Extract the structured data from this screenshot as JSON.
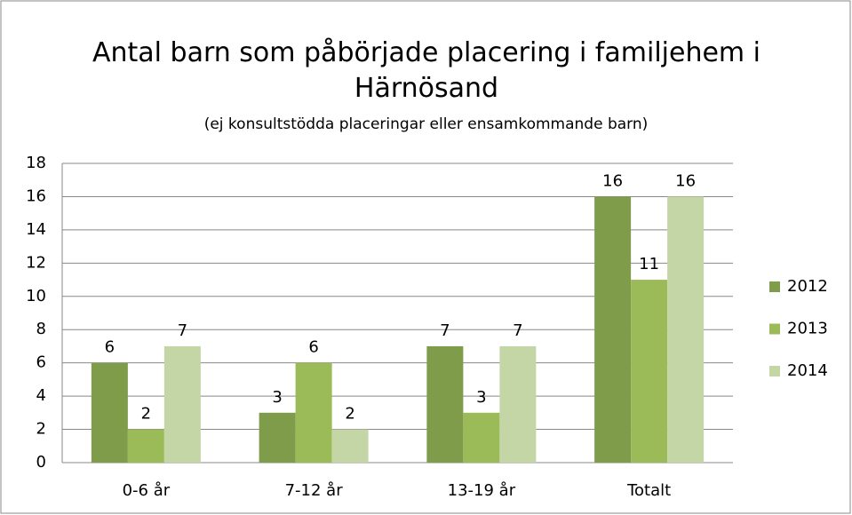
{
  "chart_data": {
    "type": "bar",
    "title": "Antal barn som påbörjade placering i familjehem i Härnösand",
    "subtitle": "(ej konsultstödda placeringar eller ensamkommande barn)",
    "categories": [
      "0-6 år",
      "7-12 år",
      "13-19 år",
      "Totalt"
    ],
    "series": [
      {
        "name": "2012",
        "color": "#7f9c4b",
        "values": [
          6,
          3,
          7,
          16
        ]
      },
      {
        "name": "2013",
        "color": "#9bbb59",
        "values": [
          2,
          6,
          3,
          11
        ]
      },
      {
        "name": "2014",
        "color": "#c4d6a6",
        "values": [
          7,
          2,
          7,
          16
        ]
      }
    ],
    "ylim": [
      0,
      18
    ],
    "yticks": [
      0,
      2,
      4,
      6,
      8,
      10,
      12,
      14,
      16,
      18
    ],
    "grid": true,
    "legend": "right"
  }
}
